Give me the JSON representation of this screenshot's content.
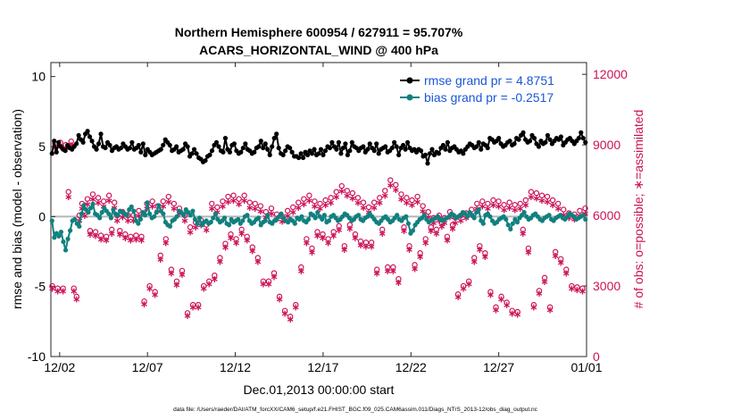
{
  "chart_data": {
    "type": "line",
    "title_line1": "Northern Hemisphere 600954 / 627911 = 95.707%",
    "title_line2": "ACARS_HORIZONTAL_WIND @ 400 hPa",
    "xlabel": "Dec.01,2013 00:00:00 start",
    "ylabel_left": "rmse and bias (model - observation)",
    "ylabel_right": "# of obs: o=possible; ∗=assimilated",
    "footer": "data file: /Users/raeder/DAI/ATM_forcXX/CAM6_setup/f.e21.FHIST_BGC.f09_025.CAM6assim.011/Diags_NTrS_2013-12/obs_diag_output.nc",
    "x_tick_labels": [
      "12/02",
      "12/07",
      "12/12",
      "12/17",
      "12/22",
      "12/27",
      "01/01"
    ],
    "x_tick_days": [
      1,
      6,
      11,
      16,
      21,
      26,
      31
    ],
    "xlim_days": [
      0.5,
      31.0
    ],
    "left_axis": {
      "ylim": [
        -10,
        11
      ],
      "ticks": [
        -10,
        -5,
        0,
        5,
        10
      ],
      "tick_labels": [
        "-10",
        "-5",
        "0",
        "5",
        "10"
      ]
    },
    "right_axis": {
      "ylim": [
        0,
        12500
      ],
      "ticks": [
        0,
        3000,
        6000,
        9000,
        12000
      ],
      "tick_labels": [
        "0",
        "3000",
        "6000",
        "9000",
        "12000"
      ]
    },
    "legend": [
      {
        "label": "rmse grand pr = 4.8751",
        "color": "#000000",
        "marker": "filled-circle"
      },
      {
        "label": "bias grand pr = -0.2517",
        "color": "#10807f",
        "marker": "filled-circle"
      }
    ],
    "colors": {
      "rmse": "#000000",
      "bias": "#10807f",
      "obs": "#cc1156",
      "zero_line": "#b5b5b5",
      "legend_text": "#1a56d6"
    },
    "steps_per_day": 4,
    "series": [
      {
        "name": "rmse",
        "values": [
          4.5,
          5.4,
          4.6,
          5.3,
          5.0,
          4.8,
          4.7,
          5.1,
          4.9,
          4.8,
          5.0,
          5.2,
          5.8,
          5.5,
          5.3,
          5.9,
          6.1,
          5.7,
          5.4,
          5.0,
          4.8,
          5.2,
          5.9,
          5.0,
          4.9,
          5.3,
          5.1,
          4.7,
          4.9,
          5.0,
          4.8,
          4.9,
          5.2,
          5.0,
          4.8,
          4.9,
          5.3,
          4.8,
          4.9,
          5.1,
          4.6,
          5.2,
          4.4,
          4.8,
          4.6,
          4.4,
          4.5,
          4.6,
          4.7,
          4.8,
          5.1,
          5.5,
          5.3,
          5.1,
          4.7,
          4.8,
          5.0,
          4.6,
          4.7,
          4.8,
          5.2,
          5.0,
          4.3,
          4.5,
          4.8,
          4.5,
          4.2,
          4.1,
          3.9,
          4.0,
          4.3,
          4.4,
          4.7,
          5.1,
          5.3,
          5.0,
          4.7,
          4.6,
          5.6,
          4.8,
          4.6,
          5.1,
          5.2,
          4.7,
          4.5,
          4.6,
          4.9,
          5.2,
          4.8,
          4.7,
          4.5,
          4.6,
          4.9,
          5.0,
          5.4,
          4.9,
          5.2,
          4.8,
          4.4,
          5.0,
          5.6,
          5.9,
          4.9,
          4.5,
          4.4,
          4.7,
          5.0,
          4.9,
          4.6,
          4.3,
          4.3,
          4.2,
          4.5,
          4.2,
          4.6,
          4.4,
          4.7,
          4.5,
          4.8,
          4.4,
          4.5,
          4.8,
          4.4,
          4.7,
          5.0,
          4.9,
          5.3,
          5.0,
          4.8,
          5.3,
          4.5,
          4.9,
          5.2,
          4.4,
          4.7,
          5.3,
          5.0,
          4.9,
          4.7,
          4.9,
          5.0,
          4.6,
          4.8,
          5.2,
          4.9,
          4.7,
          5.2,
          4.5,
          4.8,
          4.9,
          5.0,
          4.6,
          4.7,
          4.9,
          5.3,
          5.0,
          4.4,
          4.9,
          5.1,
          4.8,
          5.3,
          4.9,
          4.7,
          4.8,
          4.6,
          4.8,
          4.7,
          4.3,
          4.4,
          3.8,
          4.5,
          4.8,
          4.4,
          4.6,
          4.5,
          4.9,
          5.1,
          4.8,
          5.3,
          4.7,
          4.9,
          5.0,
          4.8,
          4.6,
          4.7,
          4.5,
          4.8,
          5.0,
          5.2,
          5.1,
          4.9,
          5.0,
          5.3,
          4.8,
          5.2,
          5.1,
          4.9,
          5.6,
          5.5,
          5.3,
          5.4,
          5.6,
          5.2,
          5.0,
          5.1,
          5.3,
          5.4,
          5.1,
          5.2,
          5.6,
          5.5,
          5.8,
          6.0,
          5.5,
          5.3,
          5.4,
          5.8,
          5.6,
          5.2,
          5.0,
          5.4,
          5.2,
          5.3,
          5.8,
          5.5,
          5.2,
          5.4,
          5.6,
          5.5,
          5.7,
          5.1,
          5.3,
          5.5,
          5.6,
          5.4,
          5.2,
          5.4,
          5.6,
          6.0,
          5.6,
          5.3
        ]
      },
      {
        "name": "bias",
        "values": [
          -0.3,
          -1.5,
          -1.2,
          -1.4,
          -1.1,
          -1.8,
          -2.4,
          -1.6,
          -1.0,
          -0.3,
          -0.2,
          -0.5,
          -0.7,
          0.2,
          0.8,
          0.5,
          0.3,
          0.6,
          0.9,
          0.2,
          0.1,
          -0.1,
          0.3,
          0.6,
          0.4,
          0.2,
          -0.1,
          0.5,
          0.2,
          0.1,
          0.4,
          0.3,
          0.2,
          0.1,
          0.5,
          0.7,
          0.4,
          -0.3,
          -0.5,
          -0.2,
          0.3,
          0.1,
          1.0,
          0.2,
          -0.1,
          0.0,
          0.3,
          0.8,
          0.4,
          0.2,
          -0.4,
          -0.6,
          -0.7,
          -0.3,
          -0.2,
          0.0,
          0.4,
          0.3,
          0.1,
          0.5,
          0.3,
          0.1,
          0.4,
          -0.2,
          -0.5,
          -0.1,
          -0.6,
          -0.4,
          -0.3,
          -0.5,
          -0.4,
          -0.1,
          0.2,
          -0.2,
          -0.4,
          -0.3,
          -0.1,
          -0.5,
          -0.6,
          -0.2,
          -0.4,
          -0.3,
          -0.2,
          -0.5,
          -0.3,
          0.0,
          0.1,
          -0.3,
          -0.5,
          -0.4,
          -0.2,
          -0.1,
          -0.6,
          -0.4,
          -0.3,
          0.1,
          -0.4,
          -0.5,
          -0.3,
          -0.2,
          0.0,
          0.2,
          -0.1,
          -0.3,
          -0.4,
          -0.2,
          -0.3,
          -0.5,
          -0.1,
          -0.2,
          0.0,
          -0.3,
          -0.4,
          -0.2,
          0.2,
          0.1,
          -0.1,
          0.3,
          0.0,
          -0.2,
          0.1,
          -0.4,
          -0.3,
          0.0,
          0.1,
          -0.1,
          -0.3,
          -0.2,
          0.0,
          0.2,
          0.1,
          -0.1,
          -0.3,
          -0.2,
          0.0,
          0.1,
          -0.2,
          -0.3,
          -0.1,
          0.0,
          0.2,
          0.0,
          -0.2,
          -0.4,
          -0.5,
          -0.3,
          -0.1,
          0.0,
          -0.2,
          -0.4,
          -0.3,
          -0.1,
          0.1,
          -0.2,
          -0.3,
          -0.1,
          0.0,
          -0.5,
          -1.2,
          -1.0,
          -0.6,
          -0.4,
          -0.2,
          -0.1,
          0.1,
          -0.2,
          -0.4,
          -0.3,
          -0.2,
          -0.1,
          0.0,
          -0.2,
          -0.3,
          -0.2,
          -0.1,
          0.0,
          0.2,
          0.1,
          -0.1,
          0.0,
          0.1,
          0.3,
          0.2,
          0.0,
          0.3,
          0.1,
          -0.1,
          0.3,
          0.5,
          -0.3,
          -0.5,
          0.1,
          0.2,
          0.0,
          -0.3,
          -0.5,
          -0.4,
          -0.2,
          -0.1,
          0.0,
          -0.2,
          -0.6,
          -0.9,
          -0.5,
          -0.2,
          -0.4,
          -0.1,
          0.1,
          0.3,
          0.0,
          -0.2,
          -0.1,
          0.1,
          0.2,
          0.0,
          -0.2,
          -0.3,
          -0.1,
          0.0,
          0.1,
          -0.2,
          -0.3,
          -0.1,
          0.0,
          0.1,
          -0.1,
          -0.2,
          0.0,
          0.2,
          0.1,
          0.0,
          -0.2,
          -0.1,
          0.0,
          0.1,
          -0.2
        ]
      },
      {
        "name": "obs_possible",
        "values": [
          3000,
          9050,
          2900,
          9100,
          2900,
          9000,
          7000,
          9150,
          2900,
          2550,
          6000,
          6500,
          6200,
          6700,
          5350,
          6900,
          5300,
          6750,
          5150,
          6600,
          5100,
          6850,
          5400,
          6550,
          6000,
          5350,
          6150,
          5200,
          6000,
          5100,
          6000,
          5150,
          6200,
          5100,
          2350,
          6500,
          3000,
          6600,
          2750,
          6400,
          4300,
          6600,
          5000,
          6800,
          3700,
          6500,
          3200,
          6300,
          3650,
          6000,
          1850,
          5500,
          2200,
          5700,
          2200,
          5800,
          3000,
          5600,
          3200,
          6500,
          3450,
          6350,
          4200,
          6600,
          4800,
          6800,
          5200,
          6850,
          5000,
          6700,
          5400,
          6850,
          5100,
          6550,
          4650,
          6500,
          4200,
          6400,
          3200,
          6150,
          3200,
          6300,
          3550,
          6050,
          2550,
          5950,
          1950,
          6200,
          1700,
          6350,
          2200,
          6550,
          3800,
          6700,
          5000,
          6850,
          4600,
          6600,
          5300,
          6500,
          5200,
          6650,
          5000,
          6750,
          5300,
          7000,
          5550,
          7250,
          4700,
          7050,
          5600,
          6950,
          5200,
          6750,
          4900,
          6550,
          4850,
          6350,
          4850,
          6550,
          3700,
          6750,
          5400,
          7050,
          3800,
          7500,
          3800,
          7300,
          3300,
          6900,
          5500,
          6750,
          4700,
          6650,
          3900,
          6800,
          4400,
          6400,
          5000,
          6150,
          5500,
          5900,
          5400,
          6000,
          5700,
          5900,
          5100,
          6150,
          5600,
          5900,
          2650,
          6000,
          3000,
          6100,
          3200,
          6250,
          4200,
          6500,
          4700,
          6600,
          4400,
          6500,
          2750,
          6650,
          2100,
          6600,
          2550,
          6450,
          2300,
          6550,
          1950,
          6450,
          1900,
          6500,
          5400,
          6650,
          4600,
          7000,
          2200,
          6950,
          2800,
          6850,
          3350,
          6800,
          2100,
          6650,
          4450,
          6500,
          4150,
          6250,
          3700,
          6100,
          3000,
          6050,
          2950,
          6200,
          2900,
          6300
        ]
      },
      {
        "name": "obs_assimilated",
        "values": [
          2900,
          8900,
          2800,
          8950,
          2800,
          8900,
          6800,
          9000,
          2800,
          2450,
          5800,
          6300,
          6000,
          6500,
          5200,
          6700,
          5150,
          6550,
          5000,
          6400,
          4950,
          6650,
          5250,
          6350,
          5800,
          5200,
          5950,
          5050,
          5800,
          4950,
          5800,
          5000,
          6000,
          4950,
          2250,
          6300,
          2900,
          6400,
          2650,
          6200,
          4150,
          6400,
          4850,
          6600,
          3550,
          6300,
          3050,
          6100,
          3500,
          5800,
          1750,
          5300,
          2100,
          5500,
          2100,
          5600,
          2900,
          5400,
          3100,
          6300,
          3300,
          6150,
          4050,
          6400,
          4650,
          6600,
          5050,
          6650,
          4850,
          6500,
          5250,
          6650,
          4950,
          6350,
          4500,
          6300,
          4050,
          6200,
          3100,
          5950,
          3100,
          6100,
          3400,
          5850,
          2450,
          5750,
          1850,
          6000,
          1600,
          6150,
          2100,
          6350,
          3650,
          6500,
          4850,
          6650,
          4450,
          6400,
          5150,
          6300,
          5050,
          6450,
          4850,
          6550,
          5150,
          6800,
          5400,
          7050,
          4550,
          6850,
          5450,
          6750,
          5050,
          6550,
          4750,
          6350,
          4700,
          6150,
          4700,
          6350,
          3550,
          6550,
          5250,
          6850,
          3650,
          7300,
          3650,
          7100,
          3150,
          6700,
          5350,
          6550,
          4550,
          6450,
          3750,
          6600,
          4250,
          6200,
          4850,
          5950,
          5350,
          5700,
          5250,
          5800,
          5550,
          5700,
          4950,
          5950,
          5450,
          5700,
          2550,
          5800,
          2900,
          5900,
          3100,
          6050,
          4050,
          6300,
          4550,
          6400,
          4250,
          6300,
          2650,
          6450,
          2000,
          6400,
          2450,
          6250,
          2200,
          6350,
          1850,
          6250,
          1800,
          6300,
          5250,
          6450,
          4450,
          6800,
          2100,
          6750,
          2700,
          6650,
          3200,
          6600,
          2000,
          6450,
          4300,
          6300,
          4000,
          6050,
          3550,
          5900,
          2900,
          5850,
          2850,
          6000,
          2800,
          6100
        ]
      }
    ]
  }
}
